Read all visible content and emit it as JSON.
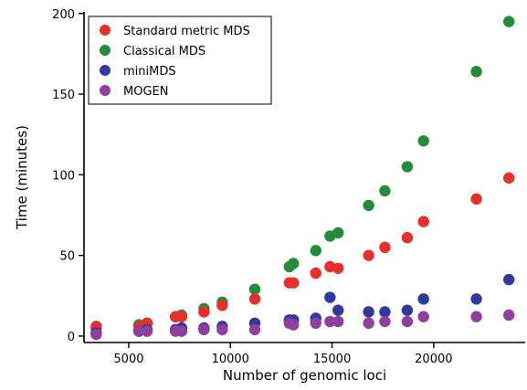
{
  "chart_data": {
    "type": "scatter",
    "xlabel": "Number of genomic loci",
    "ylabel": "Time (minutes)",
    "xlim": [
      2800,
      24500
    ],
    "ylim": [
      -4,
      201
    ],
    "xticks": [
      5000,
      10000,
      15000,
      20000
    ],
    "yticks": [
      0,
      50,
      100,
      150,
      200
    ],
    "x_tick_labels": [
      "5000",
      "10000",
      "15000",
      "20000"
    ],
    "y_tick_labels": [
      "0",
      "50",
      "100",
      "150",
      "200"
    ],
    "grid": false,
    "legend_position": "top-left",
    "series": [
      {
        "name": "Standard metric MDS",
        "color": "#e8302a",
        "points": [
          {
            "x": 3400,
            "y": 6
          },
          {
            "x": 5500,
            "y": 6
          },
          {
            "x": 5900,
            "y": 8
          },
          {
            "x": 7300,
            "y": 12
          },
          {
            "x": 7600,
            "y": 12
          },
          {
            "x": 8700,
            "y": 15
          },
          {
            "x": 9600,
            "y": 19
          },
          {
            "x": 11200,
            "y": 23
          },
          {
            "x": 12900,
            "y": 33
          },
          {
            "x": 13100,
            "y": 33
          },
          {
            "x": 14200,
            "y": 39
          },
          {
            "x": 14900,
            "y": 43
          },
          {
            "x": 15300,
            "y": 42
          },
          {
            "x": 16800,
            "y": 50
          },
          {
            "x": 17600,
            "y": 55
          },
          {
            "x": 18700,
            "y": 61
          },
          {
            "x": 19500,
            "y": 71
          },
          {
            "x": 22100,
            "y": 85
          },
          {
            "x": 23700,
            "y": 98
          }
        ]
      },
      {
        "name": "Classical MDS",
        "color": "#238b3a",
        "points": [
          {
            "x": 3400,
            "y": 5
          },
          {
            "x": 5500,
            "y": 7
          },
          {
            "x": 5900,
            "y": 8
          },
          {
            "x": 7300,
            "y": 12
          },
          {
            "x": 7600,
            "y": 13
          },
          {
            "x": 8700,
            "y": 17
          },
          {
            "x": 9600,
            "y": 21
          },
          {
            "x": 11200,
            "y": 29
          },
          {
            "x": 12900,
            "y": 43
          },
          {
            "x": 13100,
            "y": 45
          },
          {
            "x": 14200,
            "y": 53
          },
          {
            "x": 14900,
            "y": 62
          },
          {
            "x": 15300,
            "y": 64
          },
          {
            "x": 16800,
            "y": 81
          },
          {
            "x": 17600,
            "y": 90
          },
          {
            "x": 18700,
            "y": 105
          },
          {
            "x": 19500,
            "y": 121
          },
          {
            "x": 22100,
            "y": 164
          },
          {
            "x": 23700,
            "y": 195
          }
        ]
      },
      {
        "name": "miniMDS",
        "color": "#2e3a9c",
        "points": [
          {
            "x": 3400,
            "y": 2
          },
          {
            "x": 5500,
            "y": 3
          },
          {
            "x": 5900,
            "y": 4
          },
          {
            "x": 7300,
            "y": 4
          },
          {
            "x": 7600,
            "y": 5
          },
          {
            "x": 8700,
            "y": 5
          },
          {
            "x": 9600,
            "y": 6
          },
          {
            "x": 11200,
            "y": 8
          },
          {
            "x": 12900,
            "y": 10
          },
          {
            "x": 13100,
            "y": 10
          },
          {
            "x": 14200,
            "y": 11
          },
          {
            "x": 14900,
            "y": 24
          },
          {
            "x": 15300,
            "y": 16
          },
          {
            "x": 16800,
            "y": 15
          },
          {
            "x": 17600,
            "y": 15
          },
          {
            "x": 18700,
            "y": 16
          },
          {
            "x": 19500,
            "y": 23
          },
          {
            "x": 22100,
            "y": 23
          },
          {
            "x": 23700,
            "y": 35
          }
        ]
      },
      {
        "name": "MOGEN",
        "color": "#8e3fa0",
        "points": [
          {
            "x": 3400,
            "y": 1
          },
          {
            "x": 5500,
            "y": 3
          },
          {
            "x": 5900,
            "y": 3
          },
          {
            "x": 7300,
            "y": 3
          },
          {
            "x": 7600,
            "y": 3
          },
          {
            "x": 8700,
            "y": 4
          },
          {
            "x": 9600,
            "y": 4
          },
          {
            "x": 11200,
            "y": 4
          },
          {
            "x": 12900,
            "y": 8
          },
          {
            "x": 13100,
            "y": 7
          },
          {
            "x": 14200,
            "y": 8
          },
          {
            "x": 14900,
            "y": 9
          },
          {
            "x": 15300,
            "y": 9
          },
          {
            "x": 16800,
            "y": 8
          },
          {
            "x": 17600,
            "y": 9
          },
          {
            "x": 18700,
            "y": 9
          },
          {
            "x": 19500,
            "y": 12
          },
          {
            "x": 22100,
            "y": 12
          },
          {
            "x": 23700,
            "y": 13
          }
        ]
      }
    ]
  }
}
